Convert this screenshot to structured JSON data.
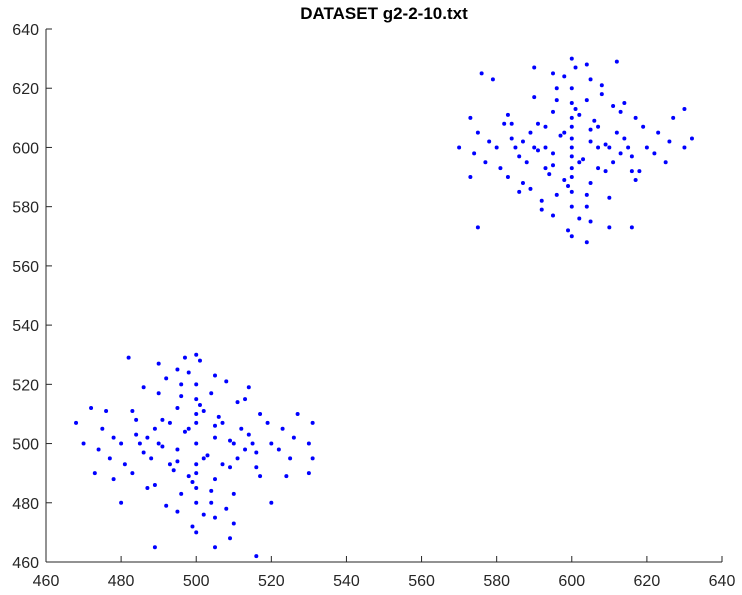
{
  "chart_data": {
    "type": "scatter",
    "title": "DATASET g2-2-10.txt",
    "xlabel": "",
    "ylabel": "",
    "xlim": [
      460,
      640
    ],
    "ylim": [
      460,
      640
    ],
    "x_ticks": [
      460,
      480,
      500,
      520,
      540,
      560,
      580,
      600,
      620,
      640
    ],
    "y_ticks": [
      460,
      480,
      500,
      520,
      540,
      560,
      580,
      600,
      620,
      640
    ],
    "grid": false,
    "legend": "none",
    "marker_color": "#0000ff",
    "series": [
      {
        "points": [
          [
            500,
            500
          ],
          [
            495,
            498
          ],
          [
            505,
            502
          ],
          [
            498,
            505
          ],
          [
            502,
            495
          ],
          [
            490,
            500
          ],
          [
            510,
            500
          ],
          [
            500,
            490
          ],
          [
            500,
            510
          ],
          [
            493,
            493
          ],
          [
            507,
            507
          ],
          [
            493,
            507
          ],
          [
            507,
            493
          ],
          [
            485,
            500
          ],
          [
            515,
            500
          ],
          [
            500,
            485
          ],
          [
            500,
            515
          ],
          [
            488,
            495
          ],
          [
            512,
            505
          ],
          [
            495,
            512
          ],
          [
            505,
            488
          ],
          [
            480,
            500
          ],
          [
            520,
            500
          ],
          [
            500,
            480
          ],
          [
            500,
            520
          ],
          [
            483,
            490
          ],
          [
            517,
            510
          ],
          [
            490,
            517
          ],
          [
            510,
            483
          ],
          [
            477,
            495
          ],
          [
            523,
            505
          ],
          [
            495,
            477
          ],
          [
            505,
            523
          ],
          [
            475,
            505
          ],
          [
            525,
            495
          ],
          [
            505,
            475
          ],
          [
            495,
            525
          ],
          [
            470,
            500
          ],
          [
            530,
            500
          ],
          [
            500,
            470
          ],
          [
            500,
            530
          ],
          [
            473,
            490
          ],
          [
            527,
            510
          ],
          [
            490,
            527
          ],
          [
            510,
            473
          ],
          [
            468,
            507
          ],
          [
            531,
            507
          ],
          [
            505,
            465
          ],
          [
            497,
            529
          ],
          [
            489,
            465
          ],
          [
            482,
            529
          ],
          [
            516,
            462
          ],
          [
            509,
            468
          ],
          [
            530,
            490
          ],
          [
            531,
            495
          ],
          [
            472,
            512
          ],
          [
            478,
            488
          ],
          [
            486,
            519
          ],
          [
            514,
            519
          ],
          [
            520,
            480
          ],
          [
            480,
            480
          ],
          [
            492,
            522
          ],
          [
            508,
            478
          ],
          [
            476,
            511
          ],
          [
            524,
            489
          ],
          [
            487,
            485
          ],
          [
            513,
            515
          ],
          [
            496,
            483
          ],
          [
            504,
            517
          ],
          [
            491,
            508
          ],
          [
            509,
            492
          ],
          [
            484,
            503
          ],
          [
            516,
            497
          ],
          [
            499,
            487
          ],
          [
            501,
            513
          ],
          [
            494,
            491
          ],
          [
            506,
            509
          ],
          [
            489,
            505
          ],
          [
            511,
            495
          ],
          [
            503,
            496
          ],
          [
            497,
            504
          ],
          [
            486,
            497
          ],
          [
            514,
            503
          ],
          [
            496,
            520
          ],
          [
            504,
            480
          ],
          [
            481,
            493
          ],
          [
            519,
            507
          ],
          [
            492,
            479
          ],
          [
            508,
            521
          ],
          [
            478,
            502
          ],
          [
            522,
            498
          ],
          [
            502,
            476
          ],
          [
            498,
            524
          ],
          [
            474,
            498
          ],
          [
            526,
            502
          ],
          [
            499,
            472
          ],
          [
            501,
            528
          ],
          [
            483,
            511
          ],
          [
            517,
            489
          ],
          [
            489,
            486
          ],
          [
            511,
            514
          ],
          [
            495,
            494
          ],
          [
            505,
            506
          ],
          [
            487,
            502
          ],
          [
            513,
            498
          ],
          [
            500,
            493
          ],
          [
            500,
            507
          ],
          [
            491,
            499
          ],
          [
            509,
            501
          ],
          [
            498,
            489
          ],
          [
            502,
            511
          ],
          [
            484,
            508
          ],
          [
            516,
            492
          ],
          [
            496,
            516
          ],
          [
            504,
            484
          ],
          [
            600,
            600
          ],
          [
            595,
            598
          ],
          [
            605,
            602
          ],
          [
            598,
            605
          ],
          [
            602,
            595
          ],
          [
            590,
            600
          ],
          [
            610,
            600
          ],
          [
            600,
            590
          ],
          [
            600,
            610
          ],
          [
            593,
            593
          ],
          [
            607,
            607
          ],
          [
            593,
            607
          ],
          [
            607,
            593
          ],
          [
            585,
            600
          ],
          [
            615,
            600
          ],
          [
            600,
            585
          ],
          [
            600,
            615
          ],
          [
            588,
            595
          ],
          [
            612,
            605
          ],
          [
            595,
            612
          ],
          [
            605,
            588
          ],
          [
            580,
            600
          ],
          [
            620,
            600
          ],
          [
            600,
            580
          ],
          [
            600,
            620
          ],
          [
            583,
            590
          ],
          [
            617,
            610
          ],
          [
            590,
            617
          ],
          [
            610,
            583
          ],
          [
            577,
            595
          ],
          [
            623,
            605
          ],
          [
            595,
            577
          ],
          [
            605,
            623
          ],
          [
            575,
            605
          ],
          [
            625,
            595
          ],
          [
            605,
            575
          ],
          [
            595,
            625
          ],
          [
            570,
            600
          ],
          [
            630,
            600
          ],
          [
            600,
            570
          ],
          [
            600,
            630
          ],
          [
            573,
            590
          ],
          [
            627,
            610
          ],
          [
            590,
            627
          ],
          [
            610,
            573
          ],
          [
            576,
            625
          ],
          [
            579,
            623
          ],
          [
            612,
            629
          ],
          [
            604,
            628
          ],
          [
            632,
            603
          ],
          [
            630,
            613
          ],
          [
            616,
            573
          ],
          [
            604,
            568
          ],
          [
            575,
            573
          ],
          [
            573,
            610
          ],
          [
            587,
            588
          ],
          [
            613,
            612
          ],
          [
            592,
            582
          ],
          [
            608,
            618
          ],
          [
            582,
            608
          ],
          [
            618,
            592
          ],
          [
            596,
            584
          ],
          [
            604,
            616
          ],
          [
            591,
            608
          ],
          [
            609,
            592
          ],
          [
            584,
            603
          ],
          [
            616,
            597
          ],
          [
            599,
            587
          ],
          [
            601,
            613
          ],
          [
            594,
            591
          ],
          [
            606,
            609
          ],
          [
            589,
            605
          ],
          [
            611,
            595
          ],
          [
            603,
            596
          ],
          [
            597,
            604
          ],
          [
            586,
            597
          ],
          [
            614,
            603
          ],
          [
            596,
            620
          ],
          [
            604,
            580
          ],
          [
            581,
            593
          ],
          [
            619,
            607
          ],
          [
            592,
            579
          ],
          [
            608,
            621
          ],
          [
            578,
            602
          ],
          [
            622,
            598
          ],
          [
            602,
            576
          ],
          [
            598,
            624
          ],
          [
            574,
            598
          ],
          [
            626,
            602
          ],
          [
            599,
            572
          ],
          [
            601,
            627
          ],
          [
            583,
            611
          ],
          [
            617,
            589
          ],
          [
            589,
            586
          ],
          [
            611,
            614
          ],
          [
            595,
            594
          ],
          [
            605,
            606
          ],
          [
            587,
            602
          ],
          [
            613,
            598
          ],
          [
            600,
            593
          ],
          [
            600,
            607
          ],
          [
            591,
            599
          ],
          [
            609,
            601
          ],
          [
            598,
            589
          ],
          [
            602,
            611
          ],
          [
            584,
            608
          ],
          [
            616,
            592
          ],
          [
            596,
            616
          ],
          [
            604,
            584
          ],
          [
            586,
            585
          ],
          [
            614,
            615
          ],
          [
            593,
            600
          ],
          [
            607,
            600
          ],
          [
            600,
            597
          ],
          [
            600,
            603
          ]
        ]
      }
    ]
  }
}
